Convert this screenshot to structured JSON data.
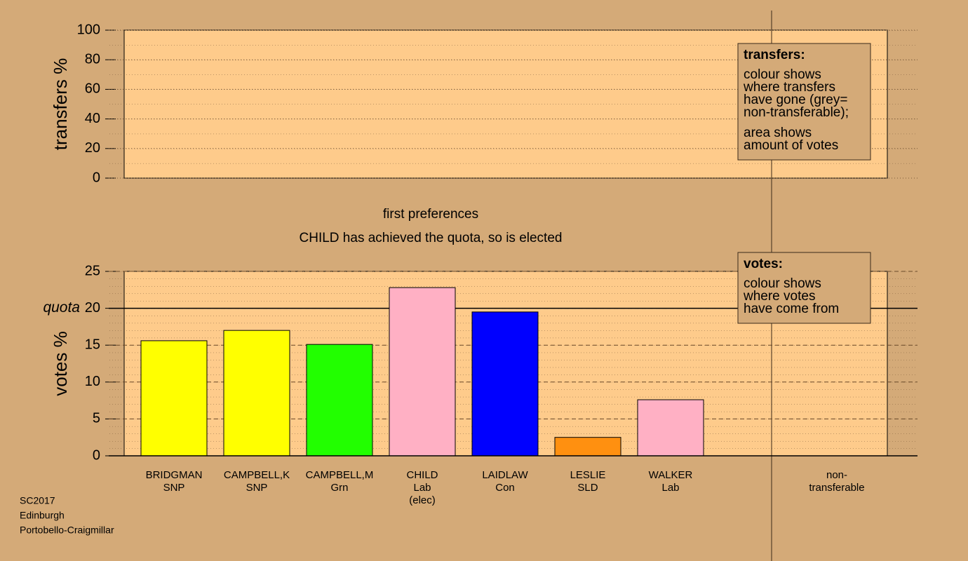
{
  "chart_data": [
    {
      "type": "bar",
      "ylabel": "transfers %",
      "ylim": [
        0,
        100
      ],
      "yticks": [
        0,
        20,
        40,
        60,
        80,
        100
      ],
      "legend": {
        "title": "transfers:",
        "paragraphs": [
          [
            "colour shows",
            "where transfers",
            "have gone (grey=",
            "non-transferable);"
          ],
          [
            "area shows",
            "amount of votes"
          ]
        ]
      }
    },
    {
      "type": "bar",
      "title": "first preferences",
      "subtitle": "CHILD has achieved the quota, so is elected",
      "ylabel": "votes %",
      "ylim": [
        0,
        25
      ],
      "yticks": [
        0,
        5,
        10,
        15,
        20,
        25
      ],
      "quota": {
        "label": "quota",
        "value": 20
      },
      "categories": [
        [
          "BRIDGMAN",
          "SNP"
        ],
        [
          "CAMPBELL,K",
          "SNP"
        ],
        [
          "CAMPBELL,M",
          "Grn"
        ],
        [
          "CHILD",
          "Lab",
          "(elec)"
        ],
        [
          "LAIDLAW",
          "Con"
        ],
        [
          "LESLIE",
          "SLD"
        ],
        [
          "WALKER",
          "Lab"
        ],
        [
          "non-",
          "transferable"
        ]
      ],
      "values": [
        15.6,
        17.0,
        15.1,
        22.8,
        19.5,
        2.5,
        7.6,
        null
      ],
      "colors": [
        "#ffff00",
        "#ffff00",
        "#22ff00",
        "#ffb0c4",
        "#0000ff",
        "#ff9010",
        "#ffb0c4",
        null
      ],
      "legend": {
        "title": "votes:",
        "paragraphs": [
          [
            "colour shows",
            "where votes",
            "have come from"
          ]
        ]
      }
    }
  ],
  "footer": [
    "SC2017",
    "Edinburgh",
    "Portobello-Craigmillar"
  ]
}
